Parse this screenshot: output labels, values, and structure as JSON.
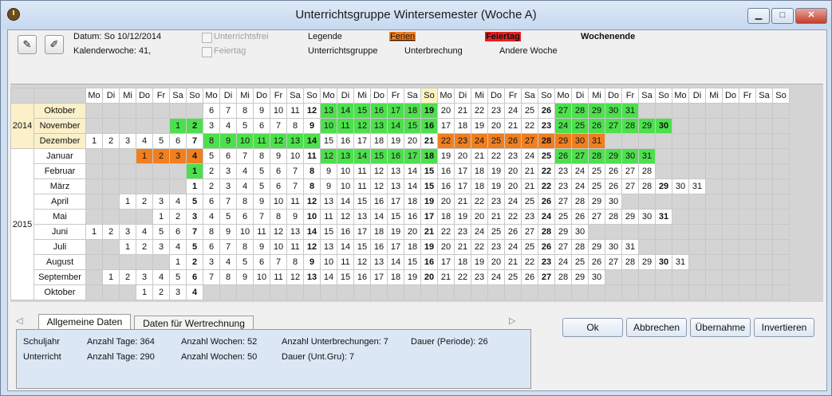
{
  "window": {
    "title": "Unterrichtsgruppe Wintersemester (Woche A)",
    "minimize": "▁",
    "maximize": "□",
    "close": "✕"
  },
  "info": {
    "datum": "Datum: So 10/12/2014",
    "kalenderwoche": "Kalenderwoche: 41,"
  },
  "filters": {
    "unterrichtsfrei": "Unterrichtsfrei",
    "feiertag": "Feiertag"
  },
  "legend": {
    "label": "Legende",
    "ferien": "Ferien",
    "feiertag": "Feiertag",
    "wochenende": "Wochenende",
    "unterrichtsgruppe": "Unterrichtsgruppe",
    "unterbrechung": "Unterbrechung",
    "andere_woche": "Andere Woche",
    "colors": {
      "ferien": "#f07f1f",
      "feiertag": "#e82020",
      "group": "#4de04d"
    }
  },
  "weekday_headers": [
    "Mo",
    "Di",
    "Mi",
    "Do",
    "Fr",
    "Sa",
    "So",
    "Mo",
    "Di",
    "Mi",
    "Do",
    "Fr",
    "Sa",
    "So",
    "Mo",
    "Di",
    "Mi",
    "Do",
    "Fr",
    "Sa",
    "So",
    "Mo",
    "Di",
    "Mi",
    "Do",
    "Fr",
    "Sa",
    "So",
    "Mo",
    "Di",
    "Mi",
    "Do",
    "Fr",
    "Sa",
    "So",
    "Mo",
    "Di",
    "Mi",
    "Do",
    "Fr",
    "Sa",
    "So"
  ],
  "calendar": [
    {
      "year": "2014",
      "month": "Oktober",
      "offset": 7,
      "days": [
        "6",
        "7",
        "8",
        "9",
        "10",
        "11",
        "12",
        "13",
        "14",
        "15",
        "16",
        "17",
        "18",
        "19",
        "20",
        "21",
        "22",
        "23",
        "24",
        "25",
        "26",
        "27",
        "28",
        "29",
        "30",
        "31"
      ],
      "green": [
        13,
        14,
        15,
        16,
        17,
        18,
        19,
        27,
        28,
        29,
        30,
        31
      ],
      "orange": []
    },
    {
      "year": "",
      "month": "November",
      "offset": 5,
      "days": [
        "1",
        "2",
        "3",
        "4",
        "5",
        "6",
        "7",
        "8",
        "9",
        "10",
        "11",
        "12",
        "13",
        "14",
        "15",
        "16",
        "17",
        "18",
        "19",
        "20",
        "21",
        "22",
        "23",
        "24",
        "25",
        "26",
        "27",
        "28",
        "29",
        "30"
      ],
      "green": [
        1,
        2,
        10,
        11,
        12,
        13,
        14,
        15,
        16,
        24,
        25,
        26,
        27,
        28,
        29,
        30
      ],
      "orange": []
    },
    {
      "year": "",
      "month": "Dezember",
      "offset": 0,
      "days": [
        "1",
        "2",
        "3",
        "4",
        "5",
        "6",
        "7",
        "8",
        "9",
        "10",
        "11",
        "12",
        "13",
        "14",
        "15",
        "16",
        "17",
        "18",
        "19",
        "20",
        "21",
        "22",
        "23",
        "24",
        "25",
        "26",
        "27",
        "28",
        "29",
        "30",
        "31"
      ],
      "green": [
        8,
        9,
        10,
        11,
        12,
        13,
        14
      ],
      "orange": [
        22,
        23,
        24,
        25,
        26,
        27,
        28,
        29,
        30,
        31
      ]
    },
    {
      "year": "2015",
      "month": "Januar",
      "offset": 3,
      "days": [
        "1",
        "2",
        "3",
        "4",
        "5",
        "6",
        "7",
        "8",
        "9",
        "10",
        "11",
        "12",
        "13",
        "14",
        "15",
        "16",
        "17",
        "18",
        "19",
        "20",
        "21",
        "22",
        "23",
        "24",
        "25",
        "26",
        "27",
        "28",
        "29",
        "30",
        "31"
      ],
      "green": [
        12,
        13,
        14,
        15,
        16,
        17,
        18,
        26,
        27,
        28,
        29,
        30,
        31
      ],
      "orange": [
        1,
        2,
        3,
        4
      ]
    },
    {
      "year": "",
      "month": "Februar",
      "offset": 6,
      "days": [
        "1",
        "2",
        "3",
        "4",
        "5",
        "6",
        "7",
        "8",
        "9",
        "10",
        "11",
        "12",
        "13",
        "14",
        "15",
        "16",
        "17",
        "18",
        "19",
        "20",
        "21",
        "22",
        "23",
        "24",
        "25",
        "26",
        "27",
        "28"
      ],
      "green": [
        1
      ],
      "orange": []
    },
    {
      "year": "",
      "month": "März",
      "offset": 6,
      "days": [
        "1",
        "2",
        "3",
        "4",
        "5",
        "6",
        "7",
        "8",
        "9",
        "10",
        "11",
        "12",
        "13",
        "14",
        "15",
        "16",
        "17",
        "18",
        "19",
        "20",
        "21",
        "22",
        "23",
        "24",
        "25",
        "26",
        "27",
        "28",
        "29",
        "30",
        "31"
      ],
      "green": [],
      "orange": []
    },
    {
      "year": "",
      "month": "April",
      "offset": 2,
      "days": [
        "1",
        "2",
        "3",
        "4",
        "5",
        "6",
        "7",
        "8",
        "9",
        "10",
        "11",
        "12",
        "13",
        "14",
        "15",
        "16",
        "17",
        "18",
        "19",
        "20",
        "21",
        "22",
        "23",
        "24",
        "25",
        "26",
        "27",
        "28",
        "29",
        "30"
      ],
      "green": [],
      "orange": []
    },
    {
      "year": "",
      "month": "Mai",
      "offset": 4,
      "days": [
        "1",
        "2",
        "3",
        "4",
        "5",
        "6",
        "7",
        "8",
        "9",
        "10",
        "11",
        "12",
        "13",
        "14",
        "15",
        "16",
        "17",
        "18",
        "19",
        "20",
        "21",
        "22",
        "23",
        "24",
        "25",
        "26",
        "27",
        "28",
        "29",
        "30",
        "31"
      ],
      "green": [],
      "orange": []
    },
    {
      "year": "",
      "month": "Juni",
      "offset": 0,
      "days": [
        "1",
        "2",
        "3",
        "4",
        "5",
        "6",
        "7",
        "8",
        "9",
        "10",
        "11",
        "12",
        "13",
        "14",
        "15",
        "16",
        "17",
        "18",
        "19",
        "20",
        "21",
        "22",
        "23",
        "24",
        "25",
        "26",
        "27",
        "28",
        "29",
        "30"
      ],
      "green": [],
      "orange": []
    },
    {
      "year": "",
      "month": "Juli",
      "offset": 2,
      "days": [
        "1",
        "2",
        "3",
        "4",
        "5",
        "6",
        "7",
        "8",
        "9",
        "10",
        "11",
        "12",
        "13",
        "14",
        "15",
        "16",
        "17",
        "18",
        "19",
        "20",
        "21",
        "22",
        "23",
        "24",
        "25",
        "26",
        "27",
        "28",
        "29",
        "30",
        "31"
      ],
      "green": [],
      "orange": []
    },
    {
      "year": "",
      "month": "August",
      "offset": 5,
      "days": [
        "1",
        "2",
        "3",
        "4",
        "5",
        "6",
        "7",
        "8",
        "9",
        "10",
        "11",
        "12",
        "13",
        "14",
        "15",
        "16",
        "17",
        "18",
        "19",
        "20",
        "21",
        "22",
        "23",
        "24",
        "25",
        "26",
        "27",
        "28",
        "29",
        "30",
        "31"
      ],
      "green": [],
      "orange": []
    },
    {
      "year": "",
      "month": "September",
      "offset": 1,
      "days": [
        "1",
        "2",
        "3",
        "4",
        "5",
        "6",
        "7",
        "8",
        "9",
        "10",
        "11",
        "12",
        "13",
        "14",
        "15",
        "16",
        "17",
        "18",
        "19",
        "20",
        "21",
        "22",
        "23",
        "24",
        "25",
        "26",
        "27",
        "28",
        "29",
        "30"
      ],
      "green": [],
      "orange": []
    },
    {
      "year": "",
      "month": "Oktober",
      "offset": 3,
      "days": [
        "1",
        "2",
        "3",
        "4"
      ],
      "green": [],
      "orange": []
    }
  ],
  "tabs": {
    "prev": "◁",
    "next": "▷",
    "allgemein": "Allgemeine Daten",
    "wertrechnung": "Daten für Wertrechnung"
  },
  "panel": {
    "row1": {
      "label": "Schuljahr",
      "tage": "Anzahl Tage: 364",
      "wochen": "Anzahl Wochen: 52",
      "unterbrechungen": "Anzahl Unterbrechungen: 7",
      "dauer": "Dauer (Periode): 26"
    },
    "row2": {
      "label": "Unterricht",
      "tage": "Anzahl Tage: 290",
      "wochen": "Anzahl Wochen: 50",
      "dauer": "Dauer (Unt.Gru): 7"
    }
  },
  "buttons": {
    "ok": "Ok",
    "abbrechen": "Abbrechen",
    "uebernahme": "Übernahme",
    "invertieren": "Invertieren"
  }
}
